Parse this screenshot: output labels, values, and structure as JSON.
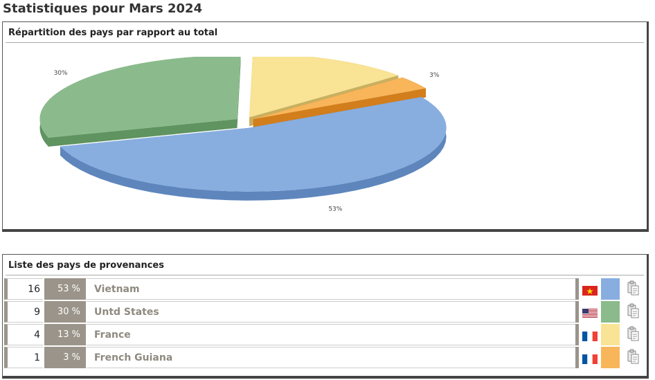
{
  "page_title": "Statistiques pour Mars 2024",
  "chart_panel": {
    "title": "Répartition des pays par rapport au total"
  },
  "list_panel": {
    "title": "Liste des pays de provenances"
  },
  "countries": [
    {
      "count": "16",
      "percent": "53 %",
      "name": "Vietnam",
      "flag": "vietnam-flag",
      "color": "#88aee0"
    },
    {
      "count": "9",
      "percent": "30 %",
      "name": "Untd States",
      "flag": "us-flag",
      "color": "#8bbb8c"
    },
    {
      "count": "4",
      "percent": "13 %",
      "name": "France",
      "flag": "france-flag",
      "color": "#f9e394"
    },
    {
      "count": "1",
      "percent": "3 %",
      "name": "French Guiana",
      "flag": "france-flag",
      "color": "#f8b55a"
    }
  ],
  "chart_data": {
    "type": "pie",
    "title": "Répartition des pays par rapport au total",
    "labels": [
      "Vietnam",
      "Untd States",
      "France",
      "French Guiana"
    ],
    "values": [
      16,
      9,
      4,
      1
    ],
    "percent_labels": [
      "53%",
      "30%",
      "13%",
      "3%"
    ],
    "colors": [
      "#88aee0",
      "#8bbb8c",
      "#f9e394",
      "#f8b55a"
    ],
    "side_colors": [
      "#5e86bd",
      "#5f9360",
      "#c9b060",
      "#d27e1c"
    ],
    "exploded": true,
    "style": "3d"
  }
}
